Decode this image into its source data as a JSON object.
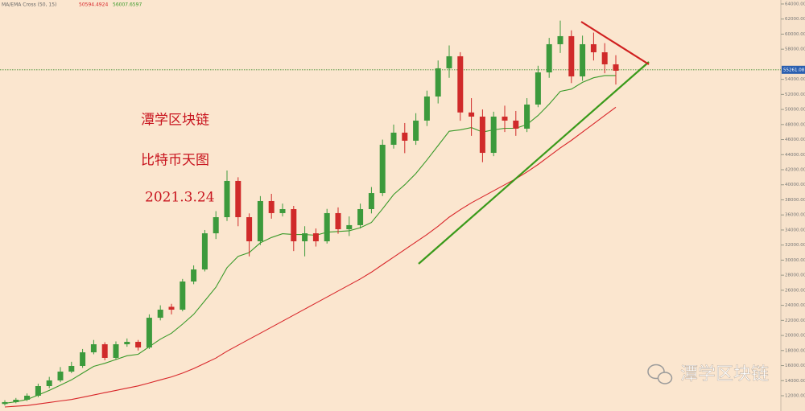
{
  "chart_data": {
    "type": "candlestick",
    "indicator": "MA/EMA Cross (50, 15)",
    "indicator_values": [
      50594.4924,
      56007.6597
    ],
    "indicator_colors": [
      "#d8262a",
      "#3a9a2a"
    ],
    "up_color": "#3c9a3c",
    "down_color": "#d02a2a",
    "categories": [
      null,
      null,
      null,
      null,
      null,
      null,
      null,
      null,
      null,
      null,
      null,
      null,
      null,
      null,
      null,
      null,
      null,
      null,
      null,
      null,
      null,
      null,
      null,
      null,
      null,
      null,
      null,
      null,
      null,
      null,
      null,
      null,
      null,
      null,
      null,
      null,
      null,
      null,
      null,
      null,
      null,
      null,
      null,
      null,
      null,
      null,
      null,
      null,
      null,
      null,
      null,
      null,
      null,
      null,
      null,
      null
    ],
    "ohlc": [
      [
        10900,
        11400,
        10700,
        11150
      ],
      [
        11150,
        11700,
        11000,
        11465
      ],
      [
        11465,
        12300,
        11300,
        12000
      ],
      [
        12000,
        13600,
        11800,
        13280
      ],
      [
        13280,
        14500,
        13000,
        14030
      ],
      [
        14030,
        15800,
        13800,
        15200
      ],
      [
        15200,
        16500,
        15000,
        15950
      ],
      [
        15950,
        18200,
        15700,
        17760
      ],
      [
        17760,
        19400,
        17500,
        18830
      ],
      [
        18830,
        19100,
        16700,
        17020
      ],
      [
        17020,
        19200,
        16800,
        18830
      ],
      [
        18830,
        19600,
        18500,
        19150
      ],
      [
        19150,
        19400,
        18000,
        18400
      ],
      [
        18400,
        22800,
        18200,
        22350
      ],
      [
        22350,
        24000,
        22000,
        23420
      ],
      [
        23800,
        24200,
        22800,
        23420
      ],
      [
        23420,
        27500,
        23200,
        27160
      ],
      [
        27160,
        29300,
        26800,
        28760
      ],
      [
        28760,
        34000,
        28500,
        33560
      ],
      [
        33560,
        36500,
        32800,
        35700
      ],
      [
        35700,
        41900,
        35200,
        40510
      ],
      [
        40510,
        41000,
        34500,
        35700
      ],
      [
        35700,
        36200,
        30500,
        32500
      ],
      [
        32500,
        38500,
        32000,
        37840
      ],
      [
        37840,
        38800,
        35500,
        36240
      ],
      [
        36240,
        37500,
        35800,
        36770
      ],
      [
        36770,
        37200,
        31200,
        32500
      ],
      [
        32500,
        34500,
        30500,
        33560
      ],
      [
        33560,
        34200,
        31800,
        32500
      ],
      [
        32500,
        36800,
        32200,
        36240
      ],
      [
        36240,
        37000,
        33500,
        34100
      ],
      [
        34100,
        35800,
        33200,
        34640
      ],
      [
        34640,
        37500,
        34200,
        36770
      ],
      [
        36770,
        39700,
        36200,
        38900
      ],
      [
        38900,
        46000,
        38500,
        45310
      ],
      [
        45310,
        48000,
        44800,
        46920
      ],
      [
        46920,
        48200,
        44200,
        45850
      ],
      [
        45850,
        49500,
        45300,
        48520
      ],
      [
        48520,
        52500,
        47800,
        51720
      ],
      [
        51720,
        56500,
        50800,
        55460
      ],
      [
        55460,
        58500,
        54200,
        57060
      ],
      [
        57060,
        57600,
        48500,
        49600
      ],
      [
        49600,
        51500,
        46500,
        49050
      ],
      [
        49050,
        50000,
        43000,
        44240
      ],
      [
        44240,
        49700,
        43800,
        49050
      ],
      [
        49050,
        50500,
        47000,
        48520
      ],
      [
        48520,
        49800,
        46500,
        47450
      ],
      [
        47450,
        51500,
        47000,
        50650
      ],
      [
        50650,
        55800,
        50300,
        54920
      ],
      [
        54920,
        59500,
        54200,
        58660
      ],
      [
        58660,
        61800,
        57500,
        59730
      ],
      [
        59730,
        60500,
        53500,
        54390
      ],
      [
        54390,
        59800,
        53800,
        58660
      ],
      [
        58660,
        60200,
        56500,
        57590
      ],
      [
        57590,
        58800,
        54800,
        55990
      ],
      [
        55990,
        57200,
        53300,
        55140
      ]
    ],
    "series": [
      {
        "color": "#d8262a",
        "values": [
          10500,
          10600,
          10700,
          10900,
          11100,
          11300,
          11500,
          11800,
          12100,
          12400,
          12700,
          13000,
          13300,
          13700,
          14100,
          14500,
          15000,
          15600,
          16300,
          17000,
          17900,
          18700,
          19500,
          20300,
          21100,
          21900,
          22700,
          23500,
          24300,
          25100,
          25900,
          26700,
          27500,
          28400,
          29400,
          30400,
          31400,
          32400,
          33400,
          34500,
          35700,
          36700,
          37600,
          38400,
          39200,
          40000,
          40800,
          41700,
          42700,
          43800,
          44900,
          45900,
          47000,
          48100,
          49200,
          50300
        ]
      },
      {
        "color": "#3a9a2a",
        "values": [
          11000,
          11200,
          11500,
          12100,
          12700,
          13400,
          14100,
          15000,
          15900,
          16300,
          16800,
          17300,
          17500,
          18500,
          19500,
          20300,
          21500,
          22800,
          24600,
          26400,
          29000,
          30500,
          31000,
          32300,
          33000,
          33500,
          33400,
          33400,
          33300,
          33700,
          33800,
          33900,
          34300,
          35000,
          36800,
          38700,
          40000,
          41500,
          43300,
          45200,
          47100,
          47300,
          47600,
          47000,
          47300,
          47500,
          47500,
          48000,
          49200,
          50700,
          52400,
          52700,
          53600,
          54200,
          54500,
          54500
        ]
      }
    ],
    "last_price": 55261.08,
    "ylim": [
      9970,
      64530
    ],
    "yticks": [
      {
        "value": 12000,
        "label": "12000.00"
      },
      {
        "value": 14000,
        "label": "14000.00"
      },
      {
        "value": 16000,
        "label": "16000.00"
      },
      {
        "value": 18000,
        "label": "18000.00"
      },
      {
        "value": 20000,
        "label": "20000.00"
      },
      {
        "value": 22000,
        "label": "22000.00"
      },
      {
        "value": 24000,
        "label": "24000.00"
      },
      {
        "value": 26000,
        "label": "26000.00"
      },
      {
        "value": 28000,
        "label": "28000.00"
      },
      {
        "value": 30000,
        "label": "30000.00"
      },
      {
        "value": 32000,
        "label": "32000.00"
      },
      {
        "value": 34000,
        "label": "34000.00"
      },
      {
        "value": 36000,
        "label": "36000.00"
      },
      {
        "value": 38000,
        "label": "38000.00"
      },
      {
        "value": 40000,
        "label": "40000.00"
      },
      {
        "value": 42000,
        "label": "42000.00"
      },
      {
        "value": 44000,
        "label": "44000.00"
      },
      {
        "value": 46000,
        "label": "46000.00"
      },
      {
        "value": 48000,
        "label": "48000.00"
      },
      {
        "value": 50000,
        "label": "50000.00"
      },
      {
        "value": 52000,
        "label": "52000.00"
      },
      {
        "value": 54000,
        "label": "54000.00"
      },
      {
        "value": 58000,
        "label": "58000.00"
      },
      {
        "value": 60000,
        "label": "60000.00"
      },
      {
        "value": 62000,
        "label": "62000.00"
      },
      {
        "value": 64000,
        "label": "64000.00"
      }
    ],
    "annotations": [
      "潭学区块链",
      "比特币天图",
      "2021.3.24"
    ],
    "watermark": "潭学区块链"
  }
}
